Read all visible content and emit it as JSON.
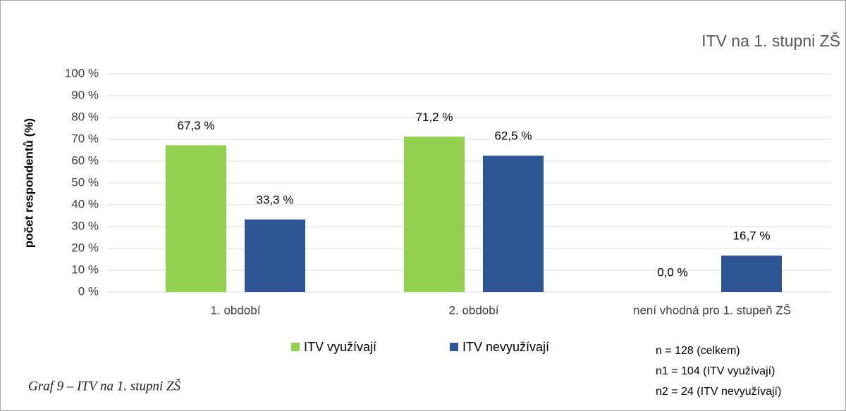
{
  "chart_data": {
    "type": "bar",
    "title": "ITV na 1. stupni ZŠ",
    "y_label": "počet respondentů (%)",
    "caption": "Graf 9 – ITV na 1. stupni ZŠ",
    "notes": [
      "n = 128 (celkem)",
      "n1 = 104 (ITV využívají)",
      "n2 = 24 (ITV nevyužívají)"
    ],
    "categories": [
      "1. období",
      "2. období",
      "není vhodná pro 1. stupeň ZŠ"
    ],
    "series": [
      {
        "name": "ITV využívají",
        "color": "#92d050",
        "values": [
          67.3,
          71.2,
          0
        ],
        "value_labels": [
          "67,3 %",
          "71,2 %",
          "0,0 %"
        ]
      },
      {
        "name": "ITV nevyužívají",
        "color": "#2f5597",
        "values": [
          33.3,
          62.5,
          16.7
        ],
        "value_labels": [
          "33,3 %",
          "62,5 %",
          "16,7 %"
        ]
      }
    ],
    "ylim": [
      0,
      100
    ],
    "yticks": [
      {
        "value": 0,
        "label": "0 %"
      },
      {
        "value": 10,
        "label": "10 %"
      },
      {
        "value": 20,
        "label": "20 %"
      },
      {
        "value": 30,
        "label": "30 %"
      },
      {
        "value": 40,
        "label": "40 %"
      },
      {
        "value": 50,
        "label": "50 %"
      },
      {
        "value": 60,
        "label": "60 %"
      },
      {
        "value": 70,
        "label": "70 %"
      },
      {
        "value": 80,
        "label": "80 %"
      },
      {
        "value": 90,
        "label": "90 %"
      },
      {
        "value": 100,
        "label": "100 %"
      }
    ],
    "grid": true,
    "legend": "bottom"
  }
}
